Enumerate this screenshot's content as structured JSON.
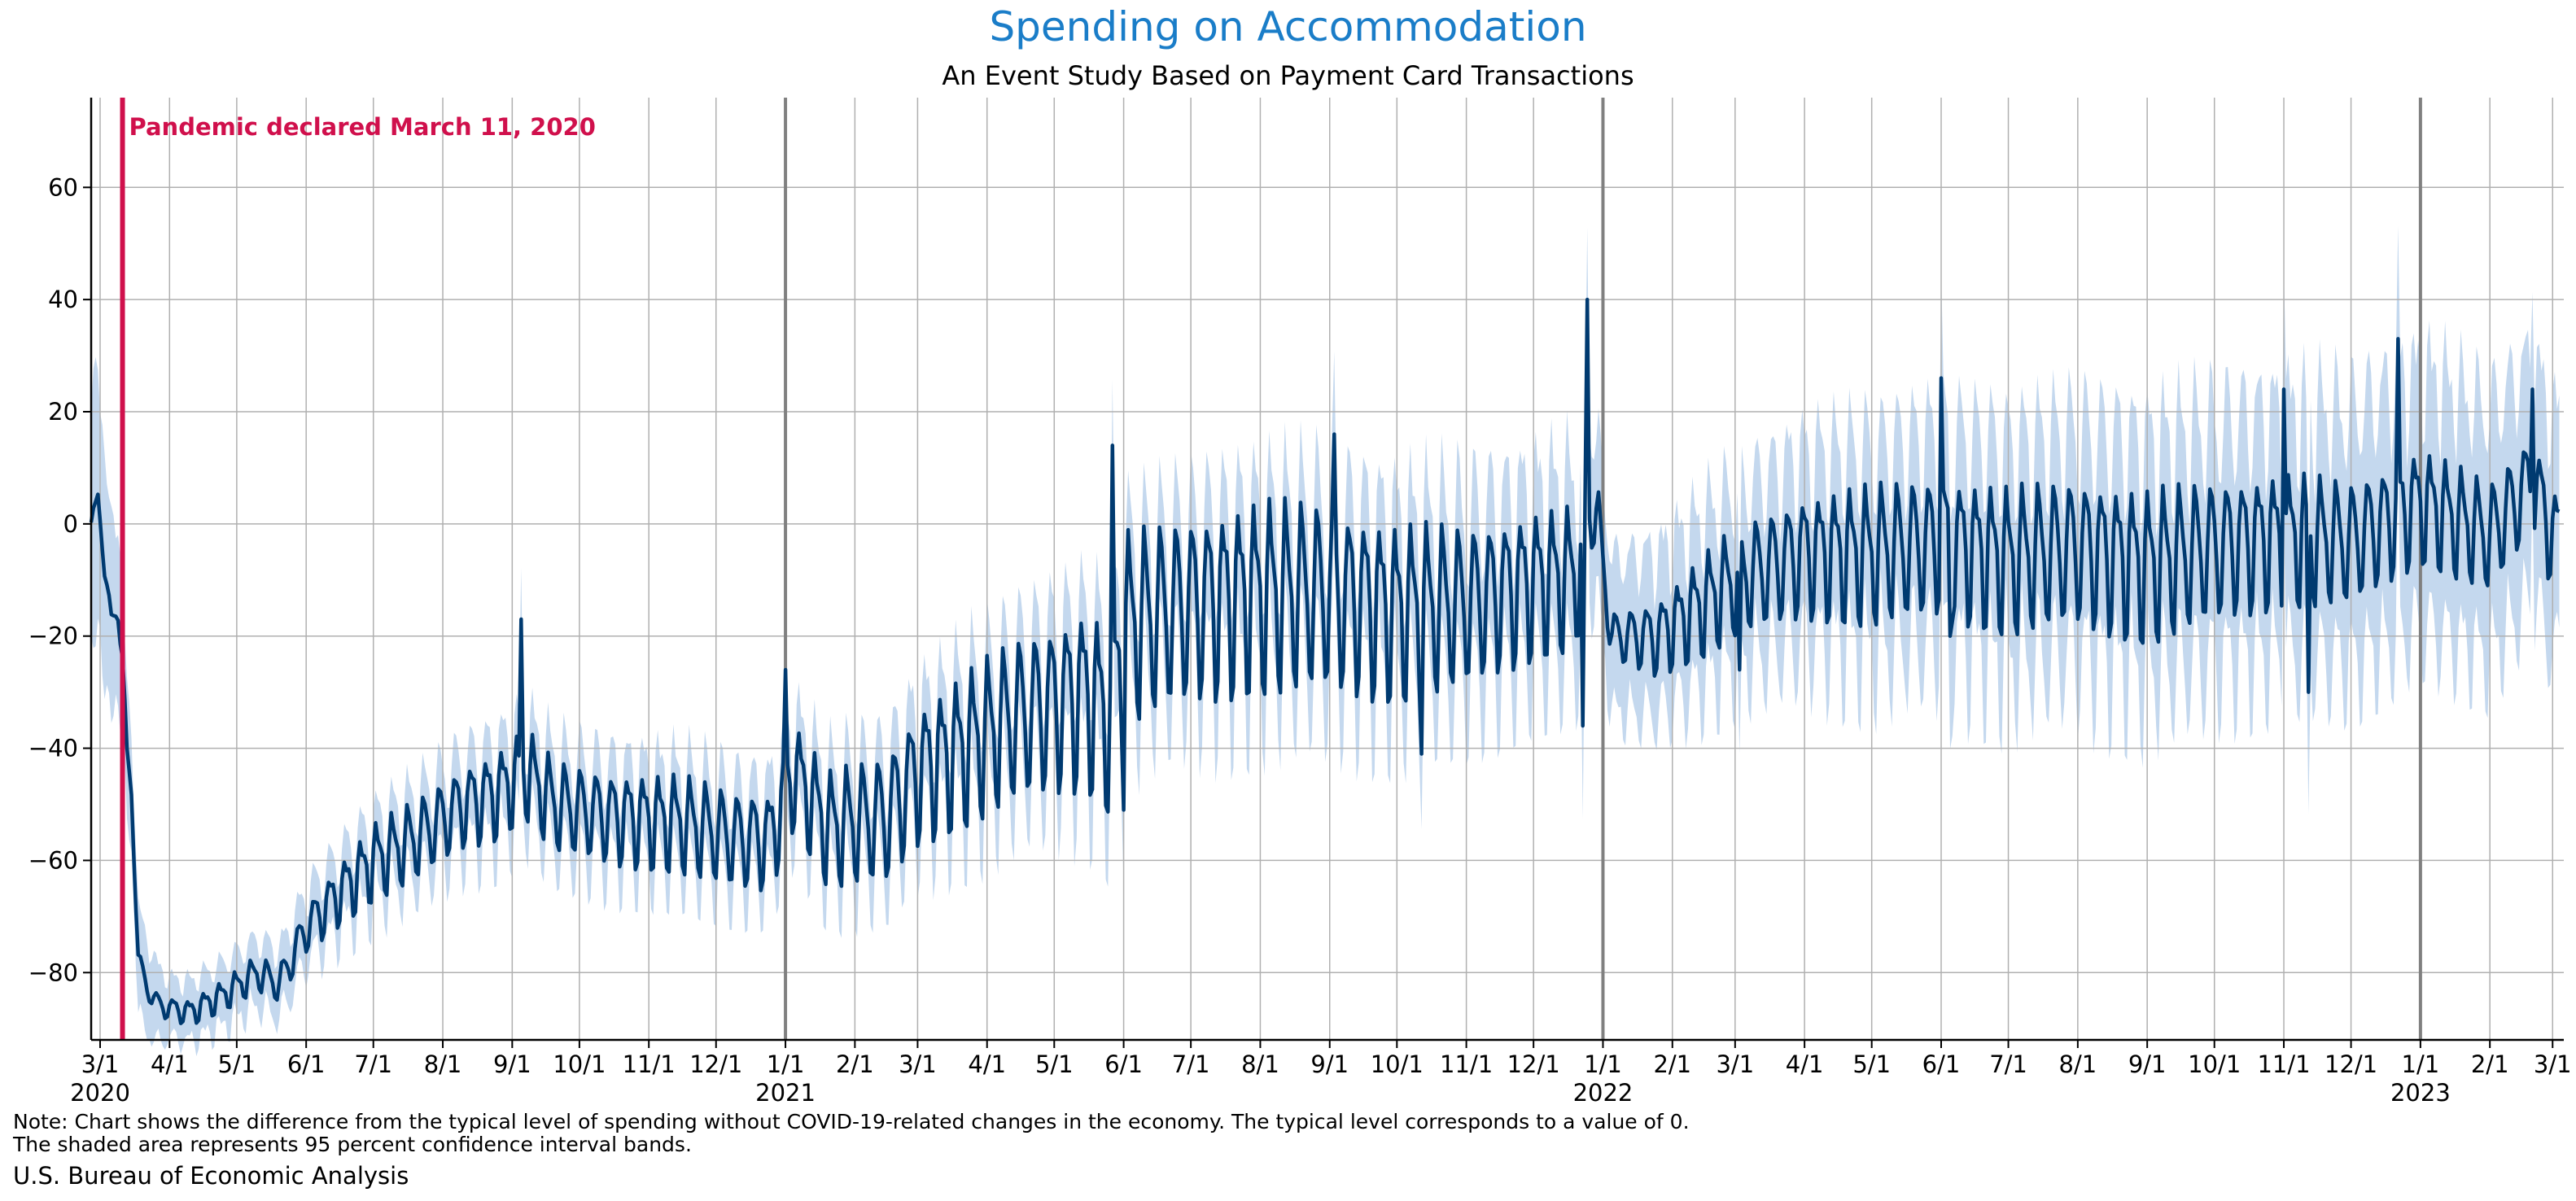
{
  "chart_data": {
    "type": "area",
    "title": "Spending on Accommodation",
    "subtitle": "An Event Study Based on Payment Card Transactions",
    "xlabel": "",
    "ylabel": "",
    "ylim": [
      -92,
      76
    ],
    "xlim": [
      "2020-02-26",
      "2023-03-06"
    ],
    "yticks": [
      -80,
      -60,
      -40,
      -20,
      0,
      20,
      40,
      60
    ],
    "grid": true,
    "legend": "none",
    "xtick_dates": [
      "2020-03-01",
      "2020-04-01",
      "2020-05-01",
      "2020-06-01",
      "2020-07-01",
      "2020-08-01",
      "2020-09-01",
      "2020-10-01",
      "2020-11-01",
      "2020-12-01",
      "2021-01-01",
      "2021-02-01",
      "2021-03-01",
      "2021-04-01",
      "2021-05-01",
      "2021-06-01",
      "2021-07-01",
      "2021-08-01",
      "2021-09-01",
      "2021-10-01",
      "2021-11-01",
      "2021-12-01",
      "2022-01-01",
      "2022-02-01",
      "2022-03-01",
      "2022-04-01",
      "2022-05-01",
      "2022-06-01",
      "2022-07-01",
      "2022-08-01",
      "2022-09-01",
      "2022-10-01",
      "2022-11-01",
      "2022-12-01",
      "2023-01-01",
      "2023-02-01",
      "2023-03-01"
    ],
    "xtick_labels": [
      "3/1",
      "4/1",
      "5/1",
      "6/1",
      "7/1",
      "8/1",
      "9/1",
      "10/1",
      "11/1",
      "12/1",
      "1/1",
      "2/1",
      "3/1",
      "4/1",
      "5/1",
      "6/1",
      "7/1",
      "8/1",
      "9/1",
      "10/1",
      "11/1",
      "12/1",
      "1/1",
      "2/1",
      "3/1",
      "4/1",
      "5/1",
      "6/1",
      "7/1",
      "8/1",
      "9/1",
      "10/1",
      "11/1",
      "12/1",
      "1/1",
      "2/1",
      "3/1"
    ],
    "year_labels": [
      {
        "date": "2020-03-01",
        "label": "2020"
      },
      {
        "date": "2021-01-01",
        "label": "2021"
      },
      {
        "date": "2022-01-01",
        "label": "2022"
      },
      {
        "date": "2023-01-01",
        "label": "2023"
      }
    ],
    "year_lines": [
      "2021-01-01",
      "2022-01-01",
      "2023-01-01"
    ],
    "event": {
      "date": "2020-03-11",
      "label": "Pandemic declared March 11, 2020",
      "color": "#d0104c"
    },
    "series": [
      {
        "type": "line",
        "color": "#003a70",
        "note": "daily estimate; key points read from chart (weekly oscillation amplitude listed separately)",
        "points": [
          [
            "2020-02-26",
            0
          ],
          [
            "2020-02-29",
            5
          ],
          [
            "2020-03-03",
            -8
          ],
          [
            "2020-03-06",
            -17
          ],
          [
            "2020-03-09",
            -16
          ],
          [
            "2020-03-11",
            -24
          ],
          [
            "2020-03-13",
            -41
          ],
          [
            "2020-03-15",
            -48
          ],
          [
            "2020-03-18",
            -77
          ],
          [
            "2020-03-22",
            -83
          ],
          [
            "2020-03-28",
            -86
          ],
          [
            "2020-04-10",
            -87
          ],
          [
            "2020-04-25",
            -84
          ],
          [
            "2020-05-10",
            -80
          ],
          [
            "2020-05-20",
            -82
          ],
          [
            "2020-06-01",
            -72
          ],
          [
            "2020-06-15",
            -66
          ],
          [
            "2020-07-01",
            -60
          ],
          [
            "2020-07-20",
            -56
          ],
          [
            "2020-08-10",
            -50
          ],
          [
            "2020-08-25",
            -48
          ],
          [
            "2020-09-07",
            -44
          ],
          [
            "2020-09-20",
            -50
          ],
          [
            "2020-10-15",
            -52
          ],
          [
            "2020-11-15",
            -53
          ],
          [
            "2020-12-10",
            -56
          ],
          [
            "2020-12-25",
            -56
          ],
          [
            "2021-01-05",
            -44
          ],
          [
            "2021-01-20",
            -54
          ],
          [
            "2021-02-15",
            -52
          ],
          [
            "2021-03-01",
            -44
          ],
          [
            "2021-03-20",
            -40
          ],
          [
            "2021-04-15",
            -34
          ],
          [
            "2021-05-15",
            -30
          ],
          [
            "2021-05-26",
            -34
          ],
          [
            "2021-06-01",
            -18
          ],
          [
            "2021-07-01",
            -14
          ],
          [
            "2021-08-01",
            -12
          ],
          [
            "2021-09-01",
            -12
          ],
          [
            "2021-10-01",
            -15
          ],
          [
            "2021-11-01",
            -14
          ],
          [
            "2021-12-01",
            -10
          ],
          [
            "2021-12-20",
            -9
          ],
          [
            "2021-12-28",
            5
          ],
          [
            "2022-01-05",
            -20
          ],
          [
            "2022-01-25",
            -20
          ],
          [
            "2022-02-15",
            -14
          ],
          [
            "2022-03-01",
            -10
          ],
          [
            "2022-04-01",
            -5
          ],
          [
            "2022-05-01",
            -5
          ],
          [
            "2022-06-01",
            -3
          ],
          [
            "2022-07-01",
            -6
          ],
          [
            "2022-08-01",
            -4
          ],
          [
            "2022-09-01",
            -7
          ],
          [
            "2022-10-01",
            -4
          ],
          [
            "2022-11-01",
            -2
          ],
          [
            "2022-12-01",
            -3
          ],
          [
            "2023-01-01",
            4
          ],
          [
            "2023-02-01",
            -2
          ],
          [
            "2023-02-20",
            8
          ],
          [
            "2023-03-01",
            -2
          ],
          [
            "2023-03-04",
            -2
          ]
        ],
        "weekly_amplitude": [
          [
            "2020-02-26",
            1
          ],
          [
            "2020-03-20",
            1.5
          ],
          [
            "2020-05-20",
            3
          ],
          [
            "2020-07-01",
            6
          ],
          [
            "2020-09-01",
            7
          ],
          [
            "2021-01-01",
            8
          ],
          [
            "2021-03-01",
            11
          ],
          [
            "2021-06-01",
            15
          ],
          [
            "2021-09-01",
            15
          ],
          [
            "2021-12-20",
            11
          ],
          [
            "2022-01-05",
            4
          ],
          [
            "2022-02-15",
            8
          ],
          [
            "2022-05-01",
            11
          ],
          [
            "2022-09-01",
            12
          ],
          [
            "2023-01-01",
            9
          ],
          [
            "2023-03-04",
            8
          ]
        ],
        "spikes": [
          [
            "2020-09-05",
            -17
          ],
          [
            "2021-01-01",
            -26
          ],
          [
            "2021-05-27",
            14
          ],
          [
            "2021-06-01",
            -51
          ],
          [
            "2021-09-03",
            16
          ],
          [
            "2021-10-12",
            -41
          ],
          [
            "2021-12-23",
            -36
          ],
          [
            "2021-12-25",
            40
          ],
          [
            "2022-03-03",
            -26
          ],
          [
            "2022-06-01",
            26
          ],
          [
            "2022-06-05",
            -20
          ],
          [
            "2022-11-01",
            24
          ],
          [
            "2022-11-12",
            -30
          ],
          [
            "2022-12-22",
            33
          ],
          [
            "2023-02-20",
            24
          ]
        ]
      },
      {
        "type": "band",
        "color": "#c4d8ee",
        "label": "95 percent confidence interval",
        "half_width": [
          [
            "2020-02-26",
            24
          ],
          [
            "2020-03-15",
            10
          ],
          [
            "2020-04-01",
            5
          ],
          [
            "2020-06-01",
            6
          ],
          [
            "2020-09-01",
            8
          ],
          [
            "2021-01-01",
            8
          ],
          [
            "2021-06-01",
            12
          ],
          [
            "2021-12-20",
            15
          ],
          [
            "2022-01-05",
            13
          ],
          [
            "2022-06-01",
            18
          ],
          [
            "2023-01-01",
            22
          ],
          [
            "2023-03-04",
            20
          ]
        ]
      }
    ]
  },
  "note_line1": "Note: Chart shows the difference from the typical level of spending without COVID-19-related changes in the economy. The typical level corresponds to a value of 0.",
  "note_line2": "The shaded area represents 95 percent confidence interval bands.",
  "source": "U.S. Bureau of Economic Analysis",
  "colors": {
    "title": "#1a7dc8",
    "line": "#003a70",
    "band": "#c4d8ee",
    "event": "#d0104c",
    "grid": "#b0b0b0",
    "yearline": "#808080"
  }
}
